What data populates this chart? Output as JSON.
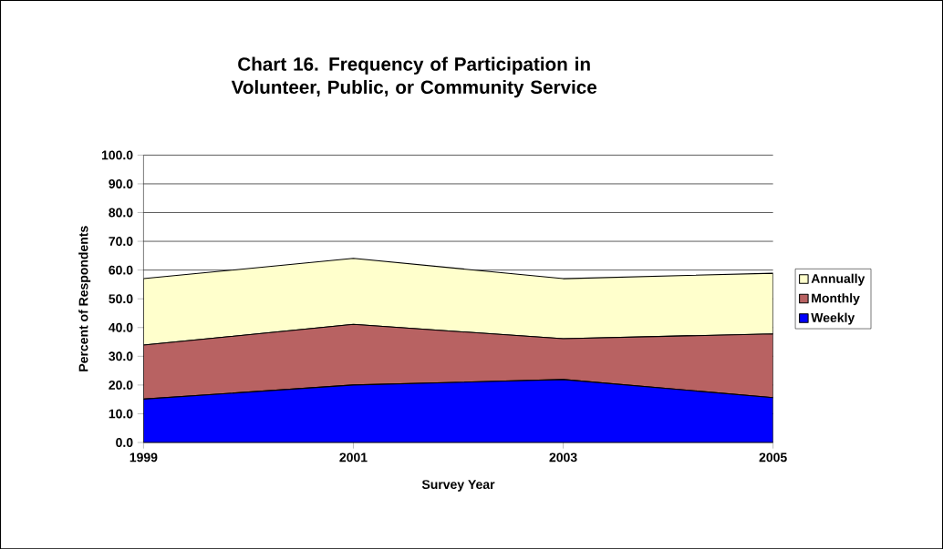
{
  "chart_data": {
    "type": "area",
    "stacked": true,
    "title": "Chart 16. Frequency of Participation in Volunteer, Public, or Community Service",
    "xlabel": "Survey Year",
    "ylabel": "Percent of Respondents",
    "x": [
      1999,
      2001,
      2003,
      2005
    ],
    "xlim": [
      1999,
      2005
    ],
    "xticks": [
      1999,
      2001,
      2003,
      2005
    ],
    "ylim": [
      0,
      100
    ],
    "yticks": [
      {
        "value": 0,
        "label": "0.0"
      },
      {
        "value": 10,
        "label": "10.0"
      },
      {
        "value": 20,
        "label": "20.0"
      },
      {
        "value": 30,
        "label": "30.0"
      },
      {
        "value": 40,
        "label": "40.0"
      },
      {
        "value": 50,
        "label": "50.0"
      },
      {
        "value": 60,
        "label": "60.0"
      },
      {
        "value": 70,
        "label": "70.0"
      },
      {
        "value": 80,
        "label": "80.0"
      },
      {
        "value": 90,
        "label": "90.0"
      },
      {
        "value": 100,
        "label": "100.0"
      }
    ],
    "grid": "y",
    "legend": "right",
    "series": [
      {
        "name": "Weekly",
        "color": "#0000ff",
        "values": [
          15.1,
          20.0,
          21.9,
          15.6
        ]
      },
      {
        "name": "Monthly",
        "color": "#b86262",
        "values": [
          18.8,
          21.1,
          14.2,
          22.2
        ]
      },
      {
        "name": "Annually",
        "color": "#ffffcc",
        "values": [
          23.1,
          23.0,
          20.9,
          21.1
        ]
      }
    ]
  }
}
